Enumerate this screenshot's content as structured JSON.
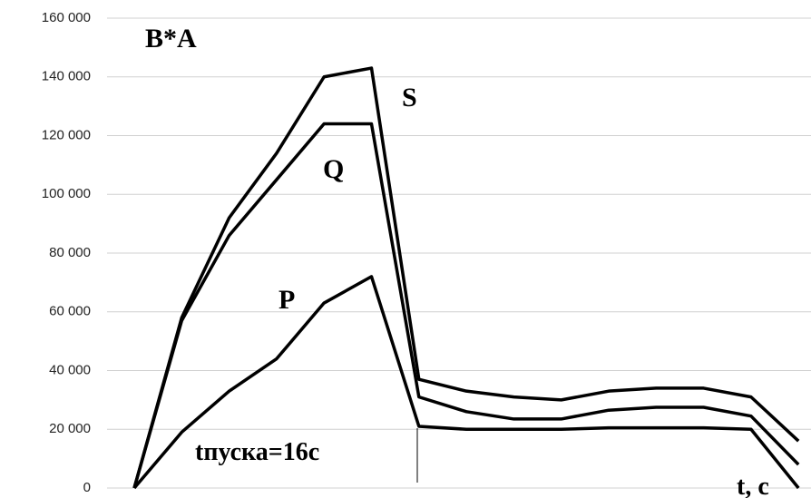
{
  "chart_data": {
    "type": "line",
    "title": "B*A",
    "x_label": "t, c",
    "annotations": [
      "S",
      "Q",
      "P",
      "tпуска=16c"
    ],
    "categories": [
      null,
      null,
      null,
      null,
      null,
      null,
      null,
      null,
      null,
      null,
      null,
      null,
      null,
      null,
      null
    ],
    "series": [
      {
        "name": "S",
        "color": "#000000",
        "values": [
          0,
          58000,
          92000,
          114000,
          140000,
          143000,
          37000,
          33000,
          31000,
          30000,
          33000,
          34000,
          34000,
          31000,
          16000
        ]
      },
      {
        "name": "Q",
        "color": "#000000",
        "values": [
          0,
          57000,
          86000,
          105000,
          124000,
          124000,
          31000,
          26000,
          23500,
          23500,
          26500,
          27500,
          27500,
          24500,
          8000
        ]
      },
      {
        "name": "P",
        "color": "#000000",
        "values": [
          0,
          19000,
          33000,
          44000,
          63000,
          72000,
          21000,
          20000,
          20000,
          20000,
          20500,
          20500,
          20500,
          20000,
          0
        ]
      }
    ],
    "ylim": [
      0,
      160000
    ],
    "yticks": [
      0,
      {
        "value": 20000,
        "label": "20 000"
      },
      {
        "value": 40000,
        "label": "40 000"
      },
      {
        "value": 60000,
        "label": "60 000"
      },
      {
        "value": 80000,
        "label": "80 000"
      },
      {
        "value": 100000,
        "label": "100 000"
      },
      {
        "value": 120000,
        "label": "120 000"
      },
      {
        "value": 140000,
        "label": "140 000"
      },
      {
        "value": 160000,
        "label": "160 000"
      }
    ],
    "grid": true
  }
}
